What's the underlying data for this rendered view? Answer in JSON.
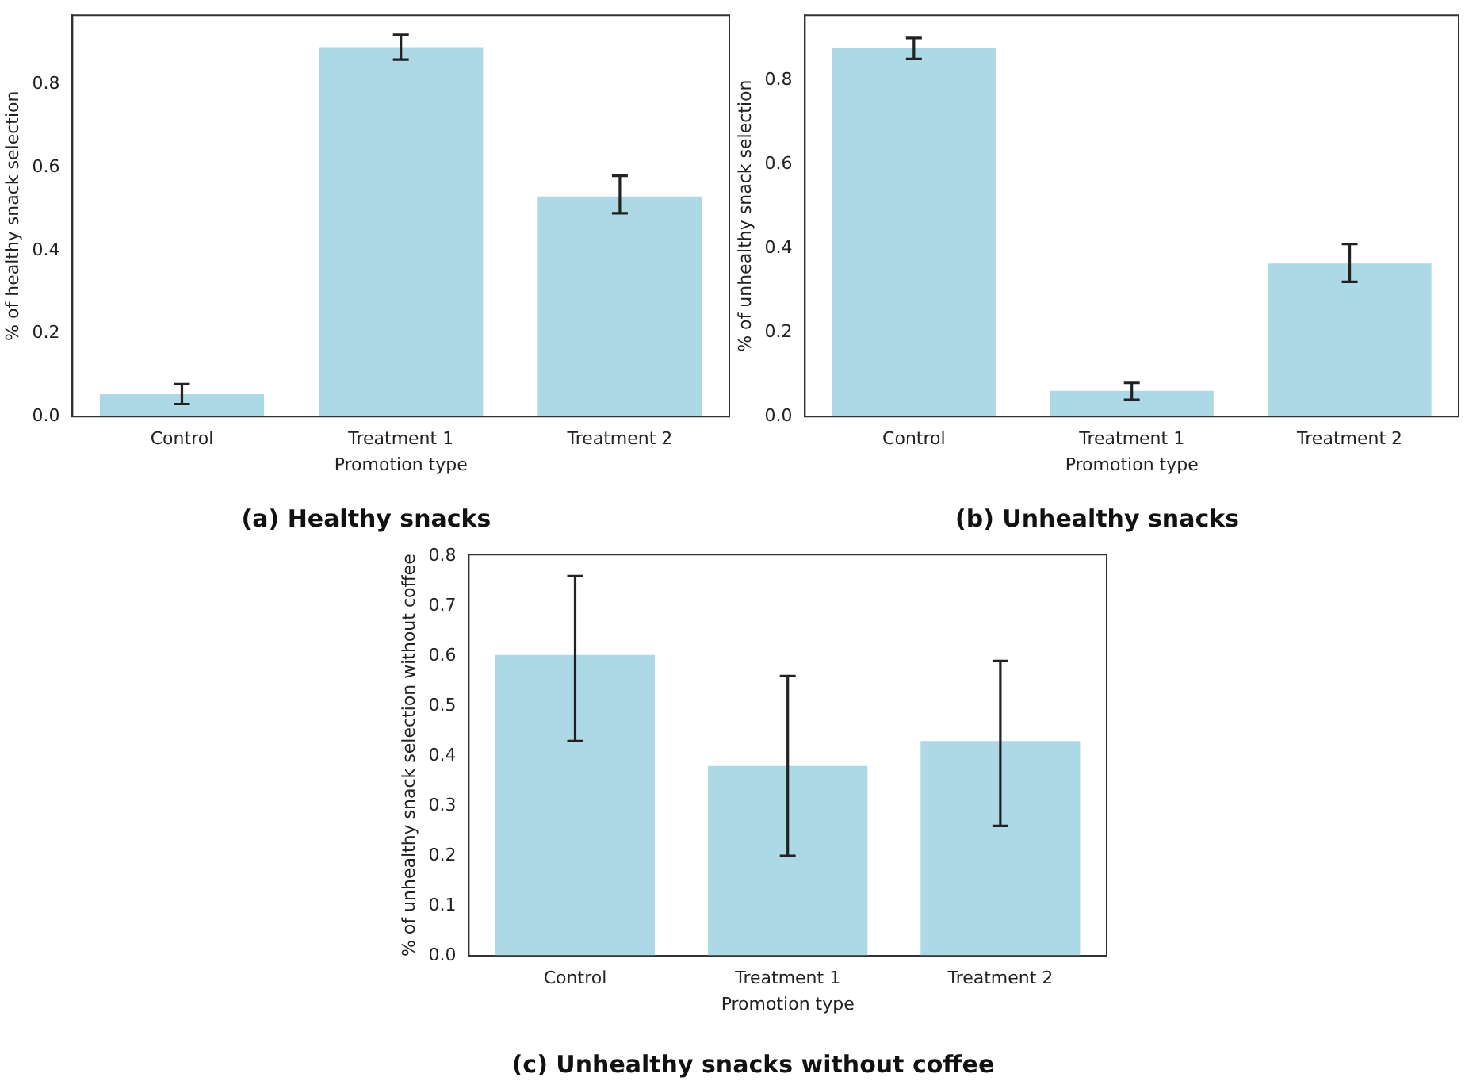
{
  "chart_data": [
    {
      "type": "bar",
      "title": "(a) Healthy snacks",
      "xlabel": "Promotion type",
      "ylabel": "% of healthy snack selection",
      "categories": [
        "Control",
        "Treatment 1",
        "Treatment 2"
      ],
      "values": [
        0.054,
        0.89,
        0.53
      ],
      "errors": [
        0.024,
        [
          0.86,
          0.92
        ],
        [
          0.49,
          0.58
        ]
      ],
      "color": "#add8e6",
      "ylim": [
        0,
        0.967
      ],
      "yticks": [
        {
          "value": 0,
          "label": "0.0"
        },
        {
          "value": 0.2,
          "label": "0.2"
        },
        {
          "value": 0.4,
          "label": "0.4"
        },
        {
          "value": 0.6,
          "label": "0.6"
        },
        {
          "value": 0.8,
          "label": "0.8"
        }
      ],
      "grid": false
    },
    {
      "type": "bar",
      "title": "(b) Unhealthy snacks",
      "xlabel": "Promotion type",
      "ylabel": "% of unhealthy snack selection",
      "categories": [
        "Control",
        "Treatment 1",
        "Treatment 2"
      ],
      "values": [
        0.877,
        0.061,
        0.364
      ],
      "errors": [
        [
          0.85,
          0.9
        ],
        [
          0.04,
          0.08
        ],
        [
          0.32,
          0.41
        ]
      ],
      "color": "#add8e6",
      "ylim": [
        0,
        0.954
      ],
      "yticks": [
        {
          "value": 0,
          "label": "0.0"
        },
        {
          "value": 0.2,
          "label": "0.2"
        },
        {
          "value": 0.4,
          "label": "0.4"
        },
        {
          "value": 0.6,
          "label": "0.6"
        },
        {
          "value": 0.8,
          "label": "0.8"
        }
      ],
      "grid": false
    },
    {
      "type": "bar",
      "title": "(c) Unhealthy snacks without coffee",
      "xlabel": "Promotion type",
      "ylabel": "% of unhealthy snack selection without coffee",
      "categories": [
        "Control",
        "Treatment 1",
        "Treatment 2"
      ],
      "values": [
        0.602,
        0.38,
        0.43
      ],
      "errors": [
        [
          0.43,
          0.76
        ],
        [
          0.2,
          0.56
        ],
        [
          0.26,
          0.59
        ]
      ],
      "color": "#add8e6",
      "ylim": [
        0,
        0.803
      ],
      "yticks": [
        {
          "value": 0,
          "label": "0.0"
        },
        {
          "value": 0.1,
          "label": "0.1"
        },
        {
          "value": 0.2,
          "label": "0.2"
        },
        {
          "value": 0.3,
          "label": "0.3"
        },
        {
          "value": 0.4,
          "label": "0.4"
        },
        {
          "value": 0.5,
          "label": "0.5"
        },
        {
          "value": 0.6,
          "label": "0.6"
        },
        {
          "value": 0.7,
          "label": "0.7"
        },
        {
          "value": 0.8,
          "label": "0.8"
        }
      ],
      "grid": false
    }
  ]
}
